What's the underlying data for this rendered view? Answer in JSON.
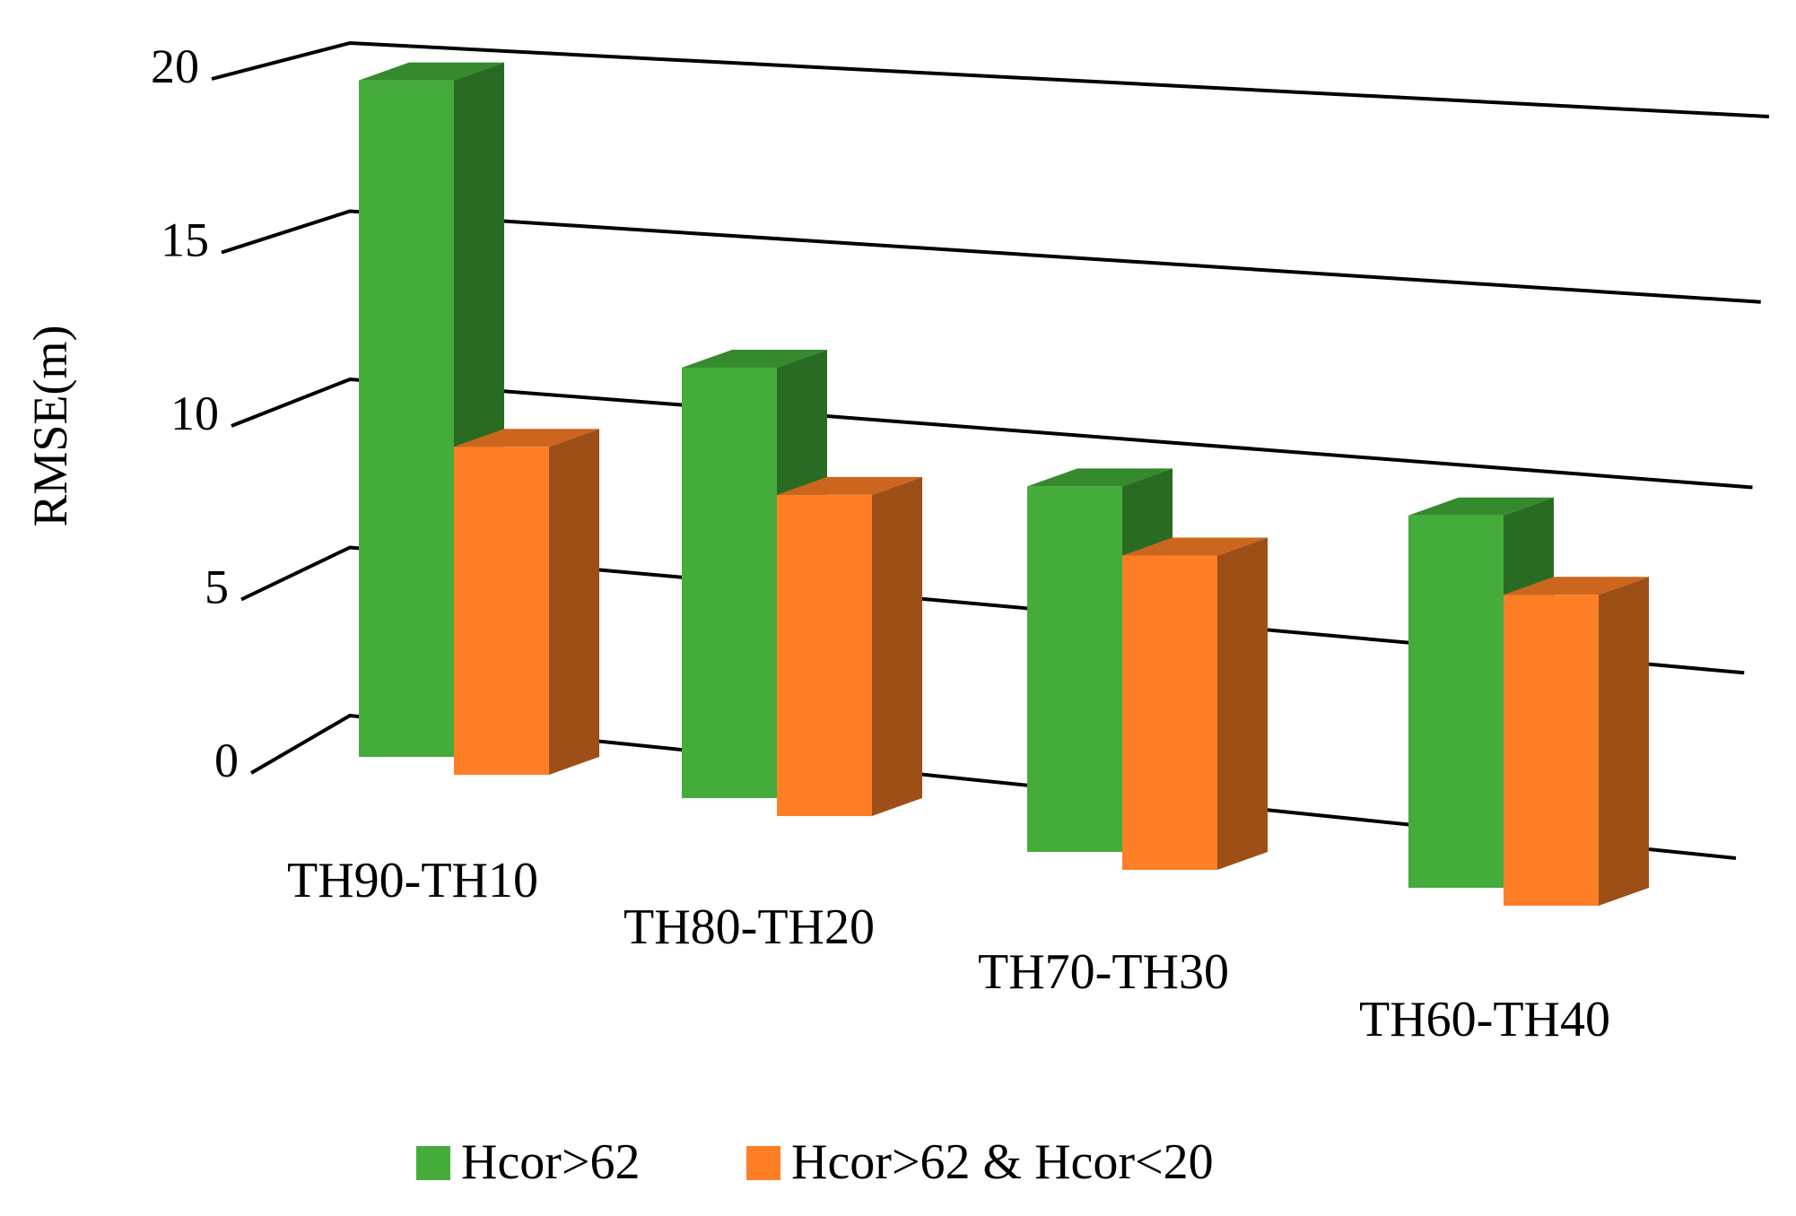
{
  "chart_data": {
    "type": "bar",
    "title": "",
    "xlabel": "",
    "ylabel": "RMSE(m)",
    "ylim": [
      0,
      20
    ],
    "yticks": [
      0,
      5,
      10,
      15,
      20
    ],
    "categories": [
      "TH90-TH10",
      "TH80-TH20",
      "TH70-TH30",
      "TH60-TH40"
    ],
    "series": [
      {
        "name": "Hcor>62",
        "values": [
          19.8,
          12.6,
          10.7,
          10.9
        ],
        "color": "#44AC3A"
      },
      {
        "name": "Hcor>62 & Hcor<20",
        "values": [
          9.6,
          9.4,
          9.2,
          9.1
        ],
        "color": "#FF7F27"
      }
    ],
    "grid": true,
    "legend": "bottom",
    "style": "3d-clustered-column"
  }
}
